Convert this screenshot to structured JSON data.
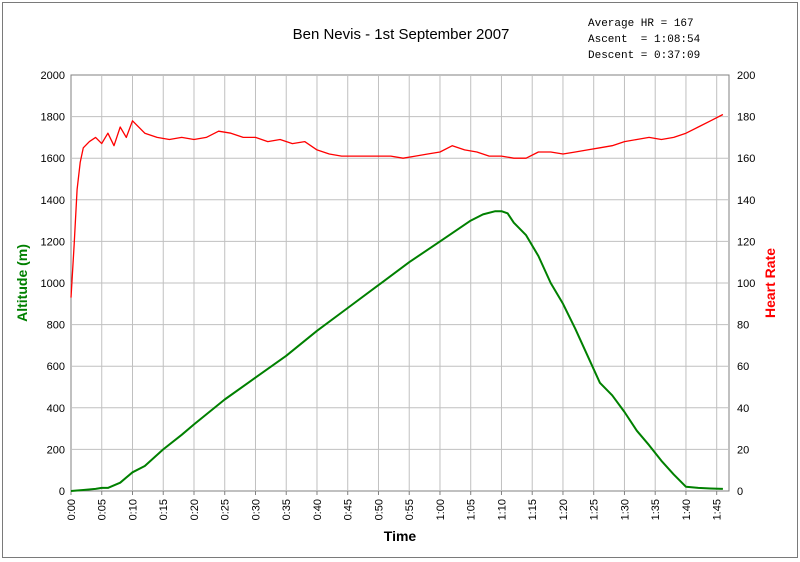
{
  "chart_data": {
    "type": "line",
    "title": "Ben Nevis - 1st September 2007",
    "annotations": [
      "Average HR = 167",
      "Ascent  = 1:08:54",
      "Descent = 0:37:09"
    ],
    "xlabel": "Time",
    "ylabel": "Altitude (m)",
    "y2label": "Heart Rate",
    "xlim": [
      0,
      107
    ],
    "ylim": [
      0,
      2000
    ],
    "y2lim": [
      0,
      200
    ],
    "grid": true,
    "x_ticks": [
      "0:00",
      "0:05",
      "0:10",
      "0:15",
      "0:20",
      "0:25",
      "0:30",
      "0:35",
      "0:40",
      "0:45",
      "0:50",
      "0:55",
      "1:00",
      "1:05",
      "1:10",
      "1:15",
      "1:20",
      "1:25",
      "1:30",
      "1:35",
      "1:40",
      "1:45"
    ],
    "y_ticks": [
      "0",
      "200",
      "400",
      "600",
      "800",
      "1000",
      "1200",
      "1400",
      "1600",
      "1800",
      "2000"
    ],
    "y2_ticks": [
      "0",
      "20",
      "40",
      "60",
      "80",
      "100",
      "120",
      "140",
      "160",
      "180",
      "200"
    ],
    "colors": {
      "altitude": "#008000",
      "heart_rate": "#ff0000",
      "altitude_label": "#008000",
      "heart_rate_label": "#ff0000"
    },
    "series": [
      {
        "name": "Altitude (m)",
        "axis": "left",
        "x": [
          0,
          2,
          4,
          5,
          6,
          8,
          10,
          12,
          15,
          18,
          20,
          25,
          30,
          35,
          40,
          45,
          50,
          55,
          60,
          65,
          67,
          69,
          70,
          71,
          72,
          74,
          76,
          78,
          80,
          82,
          84,
          86,
          88,
          90,
          92,
          94,
          96,
          98,
          100,
          102,
          104,
          106
        ],
        "y": [
          0,
          5,
          10,
          15,
          15,
          40,
          90,
          120,
          200,
          270,
          320,
          440,
          545,
          650,
          770,
          880,
          990,
          1100,
          1200,
          1300,
          1330,
          1345,
          1345,
          1335,
          1290,
          1230,
          1130,
          1000,
          900,
          780,
          650,
          520,
          460,
          380,
          290,
          220,
          145,
          80,
          20,
          15,
          12,
          10
        ]
      },
      {
        "name": "Heart Rate",
        "axis": "right",
        "x": [
          0,
          0.5,
          1,
          1.5,
          2,
          3,
          4,
          5,
          6,
          7,
          8,
          9,
          10,
          12,
          14,
          16,
          18,
          20,
          22,
          24,
          26,
          28,
          30,
          32,
          34,
          36,
          38,
          40,
          42,
          44,
          46,
          48,
          50,
          52,
          54,
          56,
          58,
          60,
          62,
          64,
          66,
          68,
          70,
          72,
          74,
          76,
          78,
          80,
          82,
          84,
          86,
          88,
          90,
          92,
          94,
          96,
          98,
          100,
          102,
          104,
          106
        ],
        "y": [
          93,
          118,
          145,
          158,
          165,
          168,
          170,
          167,
          172,
          166,
          175,
          170,
          178,
          172,
          170,
          169,
          170,
          169,
          170,
          173,
          172,
          170,
          170,
          168,
          169,
          167,
          168,
          164,
          162,
          161,
          161,
          161,
          161,
          161,
          160,
          161,
          162,
          163,
          166,
          164,
          163,
          161,
          161,
          160,
          160,
          163,
          163,
          162,
          163,
          164,
          165,
          166,
          168,
          169,
          170,
          169,
          170,
          172,
          175,
          178,
          181
        ]
      }
    ]
  }
}
